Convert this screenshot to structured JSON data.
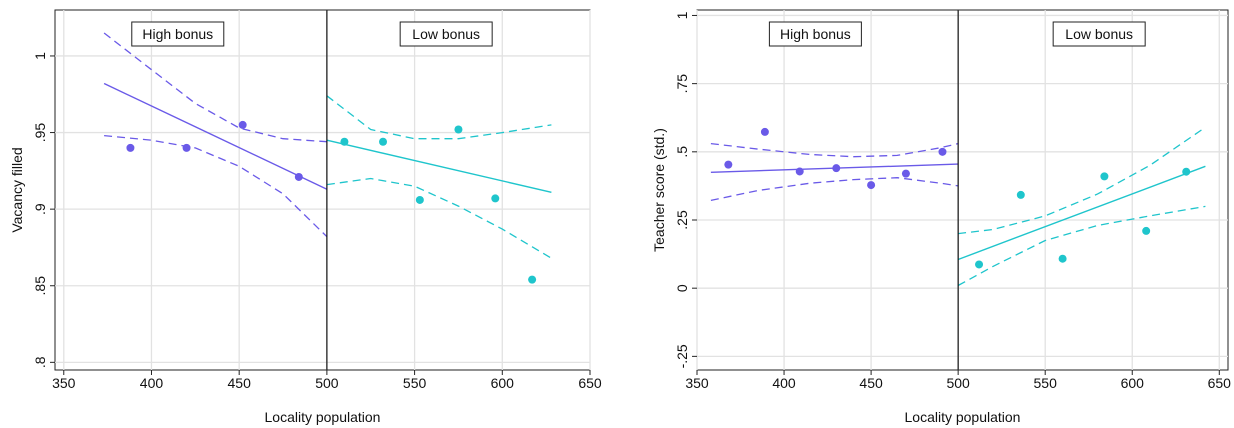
{
  "colors": {
    "high": "#6a5ae8",
    "low": "#1fc5cc"
  },
  "chart_data": [
    {
      "type": "scatter",
      "xlabel": "Locality population",
      "ylabel": "Vacancy filled",
      "xlim": [
        345,
        650
      ],
      "ylim": [
        0.795,
        1.03
      ],
      "xticks": [
        350,
        400,
        450,
        500,
        550,
        600,
        650
      ],
      "yticks": [
        0.8,
        0.85,
        0.9,
        0.95,
        1
      ],
      "yticklabels": [
        ".8",
        ".85",
        ".9",
        ".95",
        "1"
      ],
      "cutoff": 500,
      "grid": true,
      "regions": [
        {
          "label": "High bonus",
          "x_center": 415
        },
        {
          "label": "Low bonus",
          "x_center": 568
        }
      ],
      "series": [
        {
          "points": {
            "x": [
              388,
              420,
              452,
              484
            ],
            "y": [
              0.94,
              0.94,
              0.955,
              0.921
            ]
          },
          "fit": {
            "x": [
              373,
              500
            ],
            "y": [
              0.982,
              0.913
            ]
          },
          "ci_upper": {
            "x": [
              373,
              400,
              425,
              450,
              475,
              500
            ],
            "y": [
              1.015,
              0.991,
              0.969,
              0.953,
              0.946,
              0.944
            ]
          },
          "ci_lower": {
            "x": [
              373,
              400,
              425,
              450,
              475,
              500
            ],
            "y": [
              0.948,
              0.945,
              0.94,
              0.928,
              0.91,
              0.882
            ]
          },
          "color_key": "high"
        },
        {
          "points": {
            "x": [
              510,
              532,
              553,
              575,
              596,
              617
            ],
            "y": [
              0.944,
              0.944,
              0.906,
              0.952,
              0.907,
              0.854
            ]
          },
          "fit": {
            "x": [
              500,
              628
            ],
            "y": [
              0.945,
              0.911
            ]
          },
          "ci_upper": {
            "x": [
              500,
              525,
              550,
              575,
              600,
              628
            ],
            "y": [
              0.974,
              0.952,
              0.946,
              0.946,
              0.95,
              0.955
            ]
          },
          "ci_lower": {
            "x": [
              500,
              525,
              550,
              575,
              600,
              628
            ],
            "y": [
              0.916,
              0.92,
              0.915,
              0.902,
              0.887,
              0.868
            ]
          },
          "color_key": "low"
        }
      ]
    },
    {
      "type": "scatter",
      "xlabel": "Locality population",
      "ylabel": "Teacher score (std.)",
      "xlim": [
        350,
        655
      ],
      "ylim": [
        -0.3,
        1.02
      ],
      "xticks": [
        350,
        400,
        450,
        500,
        550,
        600,
        650
      ],
      "yticks": [
        -0.25,
        0,
        0.25,
        0.5,
        0.75,
        1
      ],
      "yticklabels": [
        "-.25",
        "0",
        ".25",
        ".5",
        ".75",
        "1"
      ],
      "cutoff": 500,
      "grid": true,
      "regions": [
        {
          "label": "High bonus",
          "x_center": 418
        },
        {
          "label": "Low bonus",
          "x_center": 581
        }
      ],
      "series": [
        {
          "points": {
            "x": [
              368,
              389,
              409,
              430,
              450,
              470,
              491
            ],
            "y": [
              0.453,
              0.573,
              0.428,
              0.44,
              0.378,
              0.42,
              0.5
            ]
          },
          "fit": {
            "x": [
              358,
              500
            ],
            "y": [
              0.425,
              0.455
            ]
          },
          "ci_upper": {
            "x": [
              358,
              385,
              415,
              440,
              465,
              490,
              500
            ],
            "y": [
              0.53,
              0.51,
              0.49,
              0.482,
              0.487,
              0.515,
              0.53
            ]
          },
          "ci_lower": {
            "x": [
              358,
              385,
              415,
              440,
              465,
              490,
              500
            ],
            "y": [
              0.322,
              0.358,
              0.385,
              0.398,
              0.405,
              0.385,
              0.375
            ]
          },
          "color_key": "high"
        },
        {
          "points": {
            "x": [
              512,
              536,
              560,
              584,
              608,
              631
            ],
            "y": [
              0.087,
              0.342,
              0.108,
              0.41,
              0.21,
              0.427
            ]
          },
          "fit": {
            "x": [
              500,
              642
            ],
            "y": [
              0.105,
              0.447
            ]
          },
          "ci_upper": {
            "x": [
              500,
              520,
              550,
              580,
              610,
              642
            ],
            "y": [
              0.2,
              0.215,
              0.265,
              0.345,
              0.45,
              0.59
            ]
          },
          "ci_lower": {
            "x": [
              500,
              520,
              550,
              580,
              610,
              642
            ],
            "y": [
              0.01,
              0.08,
              0.175,
              0.23,
              0.265,
              0.3
            ]
          },
          "color_key": "low"
        }
      ]
    }
  ]
}
